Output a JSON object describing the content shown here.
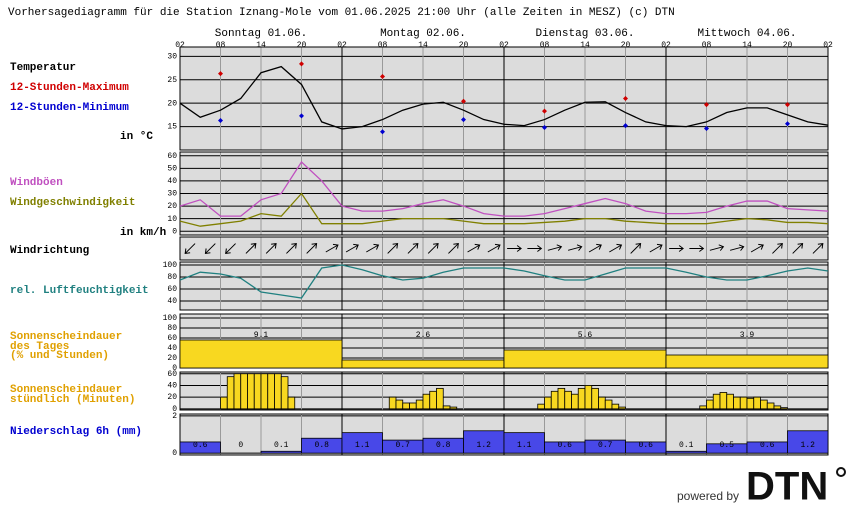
{
  "header": {
    "title": "Vorhersagediagramm für die Station Iznang-Mole vom 01.06.2025 21:00 Uhr (alle Zeiten in MESZ)   (c) DTN"
  },
  "time_axis": {
    "hours": [
      "02",
      "08",
      "14",
      "20",
      "02",
      "08",
      "14",
      "20",
      "02",
      "08",
      "14",
      "20",
      "02",
      "08",
      "14",
      "20",
      "02"
    ],
    "days": [
      "Sonntag 01.06.",
      "Montag 02.06.",
      "Dienstag 03.06.",
      "Mittwoch 04.06."
    ]
  },
  "chart_data": [
    {
      "type": "line",
      "title": "Temperatur",
      "unit": "in °C",
      "color": "#000000",
      "ylim": [
        10,
        32
      ],
      "yticks": [
        15,
        20,
        25,
        30
      ],
      "values": [
        20,
        17,
        18.5,
        21,
        26.5,
        27.8,
        24,
        16,
        14.5,
        15,
        16.5,
        18.5,
        19.8,
        20.2,
        18.5,
        16.5,
        15.5,
        15.2,
        16.5,
        18.5,
        20.2,
        20.3,
        18,
        16,
        15.2,
        15,
        16,
        18,
        19,
        19,
        17.5,
        16,
        15.3
      ],
      "series": [
        {
          "name": "12-Stunden-Maximum",
          "color": "#d00000",
          "values": [
            26.3,
            28.4,
            25.7,
            20.4,
            18.3,
            21,
            19.7,
            19.7
          ]
        },
        {
          "name": "12-Stunden-Minimum",
          "color": "#0000d0",
          "values": [
            16.3,
            17.3,
            13.9,
            16.5,
            14.8,
            15.2,
            14.6,
            15.6
          ]
        }
      ]
    },
    {
      "type": "line",
      "unit": "in km/h",
      "ylim": [
        -3,
        63
      ],
      "yticks": [
        0,
        10,
        20,
        30,
        40,
        50,
        60
      ],
      "series": [
        {
          "name": "Windböen",
          "color": "#c050c0",
          "values": [
            20,
            25,
            12,
            12,
            25,
            30,
            55,
            40,
            20,
            16,
            16,
            18,
            22,
            25,
            20,
            14,
            12,
            12,
            14,
            18,
            22,
            26,
            22,
            16,
            14,
            14,
            15,
            20,
            24,
            24,
            18,
            17,
            16
          ]
        },
        {
          "name": "Windgeschwindigkeit",
          "color": "#808000",
          "values": [
            8,
            4,
            6,
            8,
            14,
            12,
            30,
            6,
            6,
            6,
            8,
            10,
            10,
            10,
            8,
            6,
            6,
            6,
            7,
            8,
            10,
            10,
            8,
            7,
            6,
            6,
            6,
            8,
            10,
            9,
            7,
            7,
            6
          ]
        }
      ]
    },
    {
      "type": "arrows",
      "title": "Windrichtung",
      "values": [
        225,
        225,
        225,
        45,
        45,
        45,
        45,
        60,
        60,
        60,
        45,
        45,
        45,
        45,
        60,
        60,
        90,
        90,
        75,
        75,
        60,
        60,
        45,
        60,
        90,
        90,
        75,
        75,
        60,
        45,
        45,
        45
      ]
    },
    {
      "type": "line",
      "title": "rel. Luftfeuchtigkeit",
      "color": "#208080",
      "ylim": [
        25,
        105
      ],
      "yticks": [
        40,
        60,
        80,
        100
      ],
      "values": [
        75,
        88,
        85,
        78,
        55,
        50,
        45,
        95,
        100,
        92,
        82,
        75,
        78,
        88,
        95,
        95,
        95,
        90,
        82,
        75,
        75,
        85,
        95,
        95,
        95,
        88,
        80,
        75,
        75,
        82,
        90,
        95,
        90
      ]
    },
    {
      "type": "bar",
      "title": [
        "Sonnenscheindauer",
        "des Tages",
        "(% und Stunden)"
      ],
      "color": "#f8d820",
      "ylim": [
        0,
        108
      ],
      "yticks": [
        0,
        20,
        40,
        60,
        80,
        100
      ],
      "values": [
        56,
        16,
        36,
        26
      ],
      "hours": [
        9.1,
        2.6,
        5.6,
        3.9
      ]
    },
    {
      "type": "bar",
      "title": [
        "Sonnenscheindauer",
        "stündlich (Minuten)"
      ],
      "color": "#f8d820",
      "ylim": [
        -2,
        63
      ],
      "yticks": [
        0,
        20,
        40,
        60
      ],
      "values": [
        0,
        0,
        0,
        0,
        0,
        0,
        20,
        55,
        60,
        60,
        60,
        60,
        60,
        60,
        60,
        55,
        20,
        0,
        0,
        0,
        0,
        0,
        0,
        0,
        0,
        0,
        0,
        0,
        0,
        0,
        0,
        20,
        15,
        10,
        10,
        15,
        25,
        30,
        35,
        5,
        3,
        0,
        0,
        0,
        0,
        0,
        0,
        0,
        0,
        0,
        0,
        0,
        0,
        8,
        20,
        30,
        35,
        30,
        25,
        35,
        40,
        35,
        20,
        15,
        8,
        3,
        0,
        0,
        0,
        0,
        0,
        0,
        0,
        0,
        0,
        0,
        0,
        5,
        15,
        25,
        28,
        25,
        20,
        20,
        18,
        20,
        15,
        10,
        5,
        2,
        0,
        0,
        0,
        0,
        0,
        0
      ]
    },
    {
      "type": "bar",
      "title": "Niederschlag 6h (mm)",
      "color": "#4848e8",
      "ylim": [
        -0.1,
        2.1
      ],
      "yticks": [
        0,
        2
      ],
      "values": [
        0.6,
        0,
        0.1,
        0.8,
        1.1,
        0.7,
        0.8,
        1.2,
        1.1,
        0.6,
        0.7,
        0.6,
        0.1,
        0.5,
        0.6,
        1.2
      ]
    }
  ],
  "footer": {
    "powered_by": "powered by",
    "logo": "DTN"
  }
}
